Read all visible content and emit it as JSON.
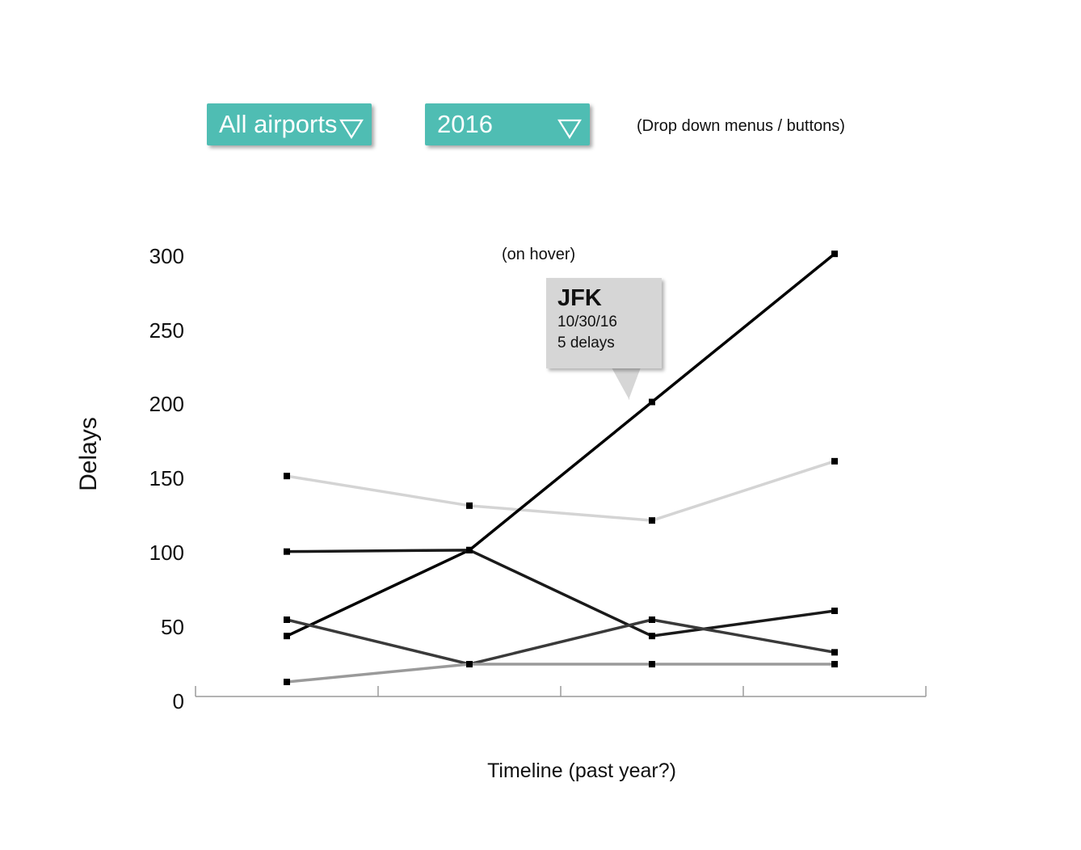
{
  "controls": {
    "airport_dropdown": "All airports",
    "year_dropdown": "2016",
    "dropdown_note": "(Drop down menus / buttons)"
  },
  "hover_note": "(on hover)",
  "tooltip": {
    "title": "JFK",
    "date": "10/30/16",
    "value": "5 delays"
  },
  "colors": {
    "dropdown_bg": "#4fbdb3",
    "tooltip_bg": "#d6d6d6"
  },
  "icons": {
    "dropdown_caret": "triangle-down-outline-icon"
  },
  "chart_data": {
    "type": "line",
    "title": "",
    "xlabel": "Timeline (past year?)",
    "ylabel": "Delays",
    "ylim": [
      0,
      300
    ],
    "yticks": [
      "0",
      "50",
      "100",
      "150",
      "200",
      "250",
      "300"
    ],
    "x": [
      1,
      2,
      3,
      4
    ],
    "grid": false,
    "series": [
      {
        "color": "#d4d4d4",
        "values": [
          151,
          131,
          121,
          161
        ]
      },
      {
        "color": "#000000",
        "values": [
          43,
          101,
          201,
          301
        ]
      },
      {
        "color": "#1a1a1a",
        "values": [
          100,
          101,
          43,
          60
        ]
      },
      {
        "color": "#3a3a3a",
        "values": [
          54,
          24,
          54,
          32
        ]
      },
      {
        "color": "#9a9a9a",
        "values": [
          12,
          24,
          24,
          24
        ]
      }
    ]
  }
}
